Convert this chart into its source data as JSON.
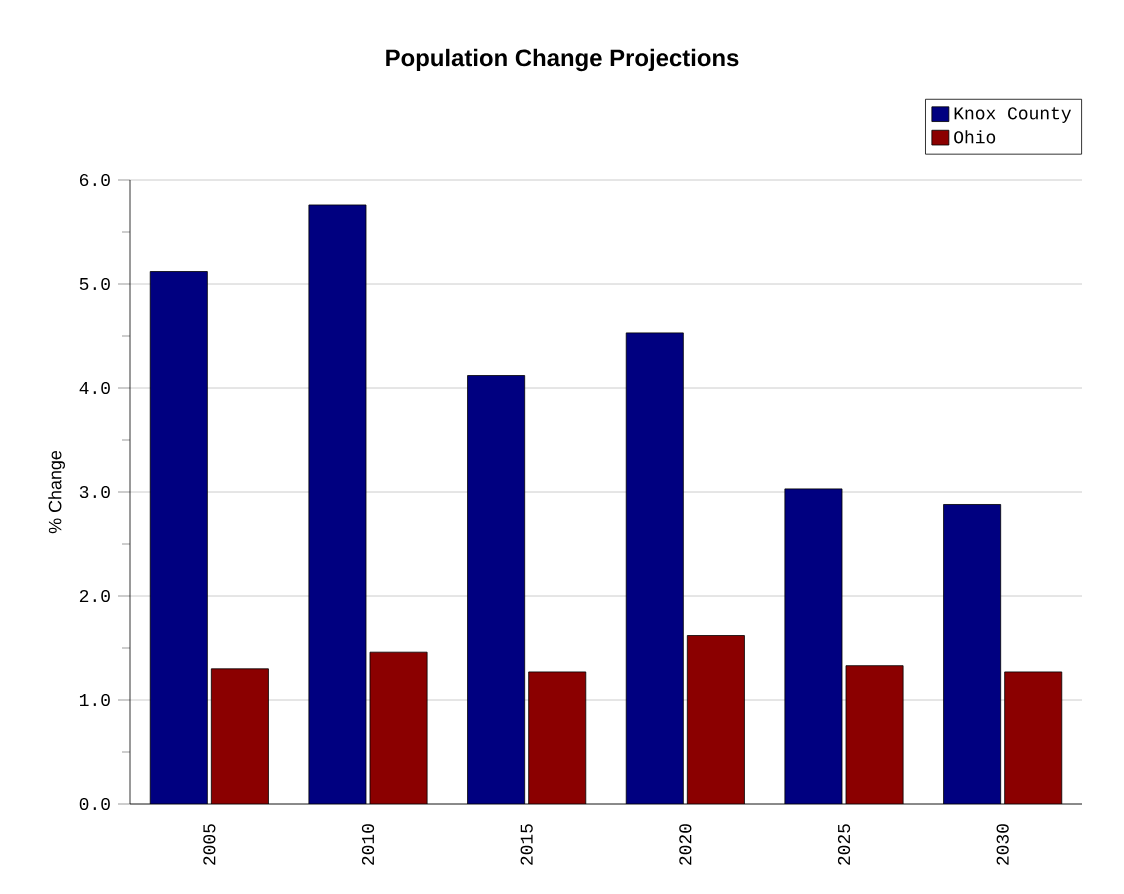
{
  "chart_data": {
    "type": "bar",
    "title": "Population Change Projections",
    "ylabel": "% Change",
    "categories": [
      "2005",
      "2010",
      "2015",
      "2020",
      "2025",
      "2030"
    ],
    "series": [
      {
        "name": "Knox County",
        "color": "#000080",
        "values": [
          5.12,
          5.76,
          4.12,
          4.53,
          3.03,
          2.88
        ]
      },
      {
        "name": "Ohio",
        "color": "#8b0000",
        "values": [
          1.3,
          1.46,
          1.27,
          1.62,
          1.33,
          1.27
        ]
      }
    ],
    "ylim": [
      0,
      6
    ],
    "yticks": [
      {
        "value": 0,
        "label": "0.0"
      },
      {
        "value": 1,
        "label": "1.0"
      },
      {
        "value": 2,
        "label": "2.0"
      },
      {
        "value": 3,
        "label": "3.0"
      },
      {
        "value": 4,
        "label": "4.0"
      },
      {
        "value": 5,
        "label": "5.0"
      },
      {
        "value": 6,
        "label": "6.0"
      }
    ],
    "grid": "y",
    "legend": "top right"
  }
}
